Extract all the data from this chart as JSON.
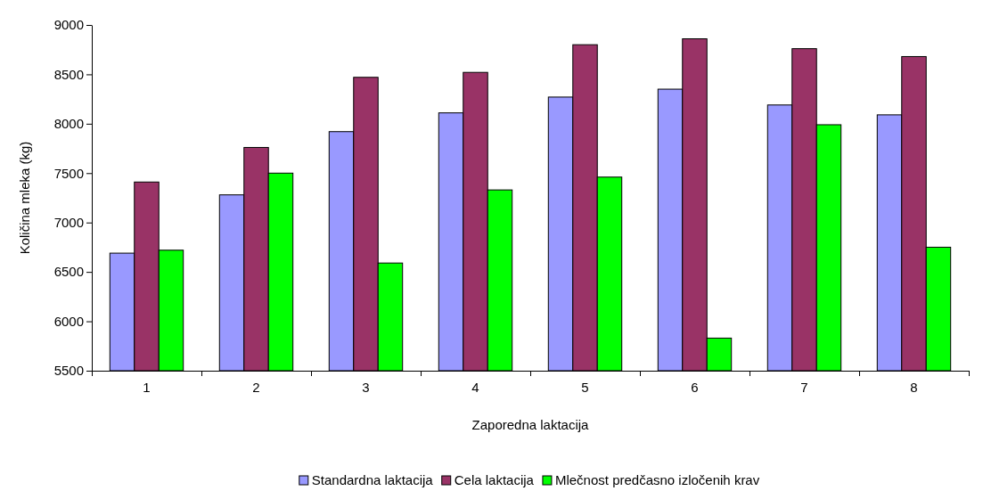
{
  "chart_data": {
    "type": "bar",
    "xlabel": "Zaporedna laktacija",
    "ylabel": "Količina mleka (kg)",
    "categories": [
      "1",
      "2",
      "3",
      "4",
      "5",
      "6",
      "7",
      "8"
    ],
    "series": [
      {
        "name": "Standardna laktacija",
        "color": "#9999ff",
        "values": [
          6690,
          7280,
          7920,
          8110,
          8270,
          8350,
          8190,
          8090
        ]
      },
      {
        "name": "Cela laktacija",
        "color": "#993366",
        "values": [
          7410,
          7760,
          8470,
          8520,
          8800,
          8860,
          8760,
          8680
        ]
      },
      {
        "name": "Mlečnost predčasno izločenih krav",
        "color": "#00ff00",
        "values": [
          6720,
          7500,
          6590,
          7330,
          7460,
          5830,
          7990,
          6750
        ]
      }
    ],
    "ylim": [
      5500,
      9000
    ],
    "yticks": [
      5500,
      6000,
      6500,
      7000,
      7500,
      8000,
      8500,
      9000
    ],
    "grid": false,
    "legend": "bottom"
  }
}
